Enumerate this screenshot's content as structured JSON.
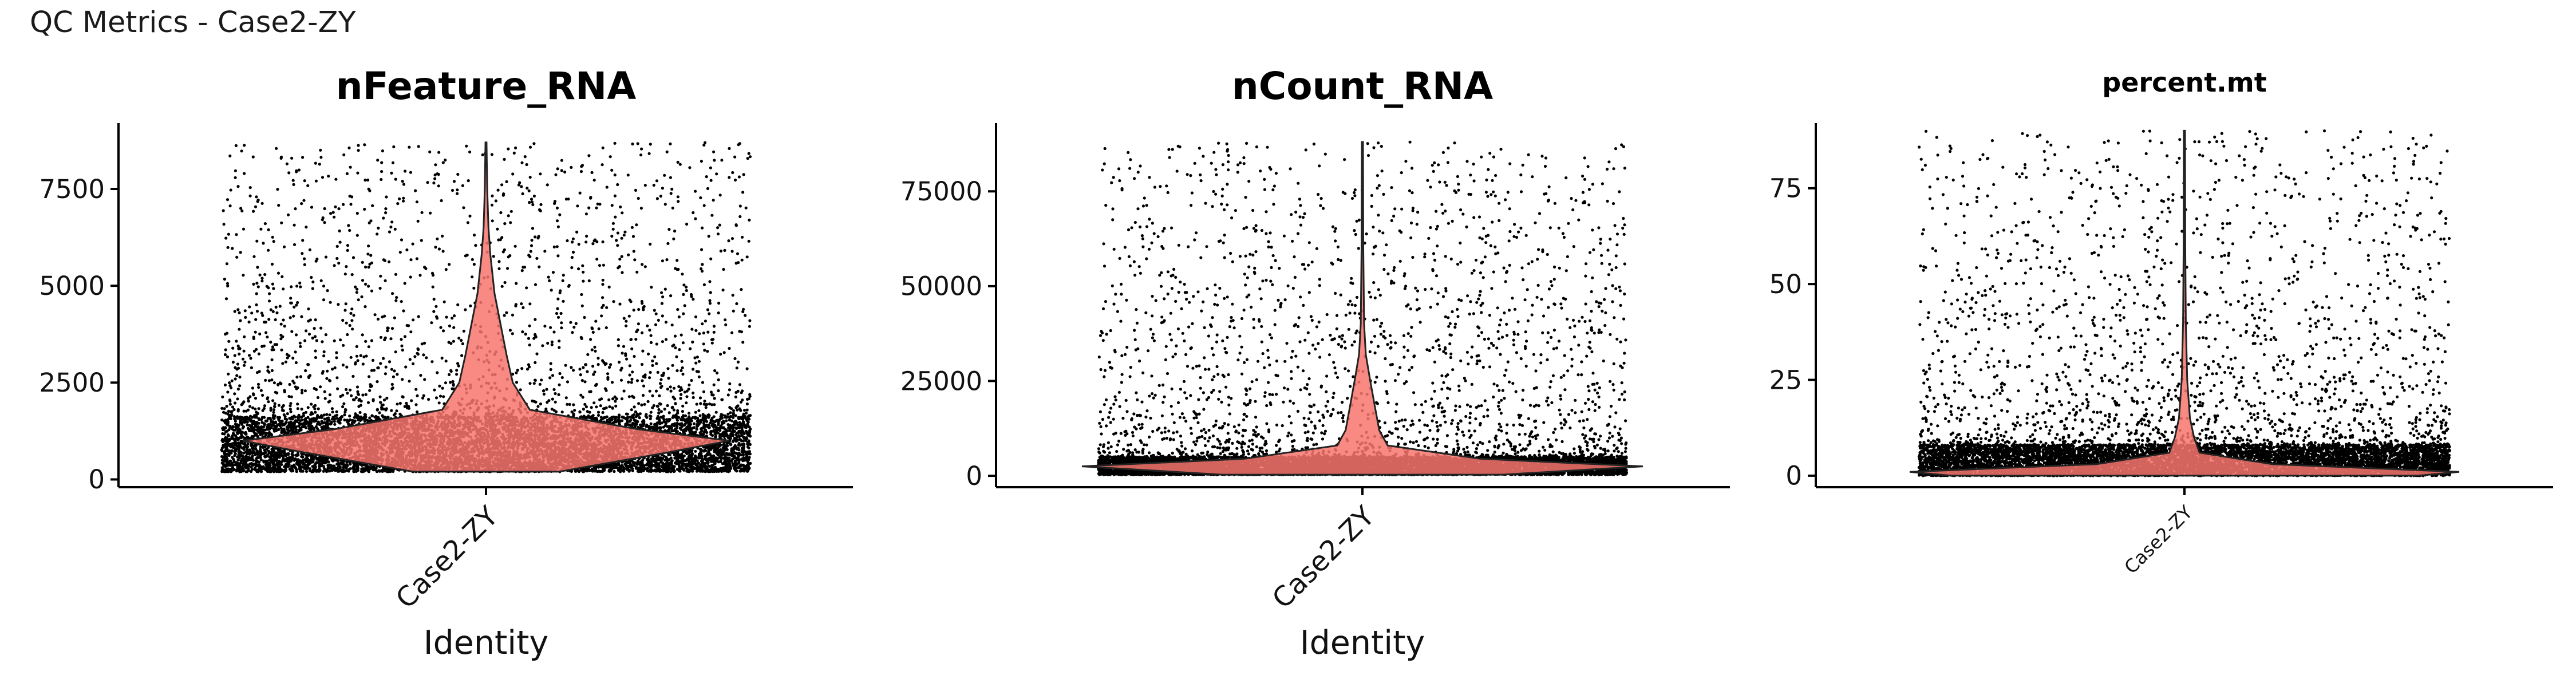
{
  "figure": {
    "title": "QC Metrics - Case2-ZY",
    "violin_fill": "#F8766D",
    "point_color": "#000000"
  },
  "chart_data": [
    {
      "type": "violin",
      "title": "nFeature_RNA",
      "xlabel": "Identity",
      "ylabel": "",
      "categories": [
        "Case2-ZY"
      ],
      "yticks": [
        0,
        2500,
        5000,
        7500
      ],
      "ylim": [
        -200,
        9200
      ],
      "summary": {
        "median": 1000,
        "max": 8700,
        "min": 200,
        "bulk_range": [
          200,
          1600
        ]
      },
      "violin_profile": [
        [
          200,
          0.3
        ],
        [
          700,
          0.75
        ],
        [
          1000,
          1.0
        ],
        [
          1300,
          0.62
        ],
        [
          1800,
          0.18
        ],
        [
          2500,
          0.11
        ],
        [
          3200,
          0.085
        ],
        [
          4000,
          0.06
        ],
        [
          4800,
          0.035
        ],
        [
          5800,
          0.018
        ],
        [
          6500,
          0.01
        ],
        [
          7500,
          0.005
        ],
        [
          8700,
          0.002
        ]
      ],
      "grid": false,
      "legend": "none"
    },
    {
      "type": "violin",
      "title": "nCount_RNA",
      "xlabel": "Identity",
      "ylabel": "",
      "categories": [
        "Case2-ZY"
      ],
      "yticks": [
        0,
        25000,
        50000,
        75000
      ],
      "ylim": [
        -3000,
        93000
      ],
      "summary": {
        "median": 2500,
        "max": 88000,
        "min": 300,
        "bulk_range": [
          300,
          5000
        ]
      },
      "violin_profile": [
        [
          300,
          0.5
        ],
        [
          2500,
          1.0
        ],
        [
          4500,
          0.42
        ],
        [
          8000,
          0.09
        ],
        [
          12000,
          0.06
        ],
        [
          18000,
          0.045
        ],
        [
          25000,
          0.028
        ],
        [
          32000,
          0.012
        ],
        [
          40000,
          0.006
        ],
        [
          60000,
          0.003
        ],
        [
          88000,
          0.002
        ]
      ],
      "grid": false,
      "legend": "none"
    },
    {
      "type": "violin",
      "title": "percent.mt",
      "xlabel": "",
      "ylabel": "",
      "categories": [
        "Case2-ZY"
      ],
      "yticks": [
        0,
        25,
        50,
        75
      ],
      "ylim": [
        -3,
        92
      ],
      "summary": {
        "median": 1,
        "max": 90,
        "min": 0,
        "bulk_range": [
          0,
          8
        ]
      },
      "violin_profile": [
        [
          0,
          0.85
        ],
        [
          1,
          1.0
        ],
        [
          3,
          0.32
        ],
        [
          6,
          0.055
        ],
        [
          10,
          0.035
        ],
        [
          15,
          0.02
        ],
        [
          25,
          0.01
        ],
        [
          40,
          0.005
        ],
        [
          60,
          0.003
        ],
        [
          90,
          0.002
        ]
      ],
      "grid": false,
      "legend": "none"
    }
  ]
}
